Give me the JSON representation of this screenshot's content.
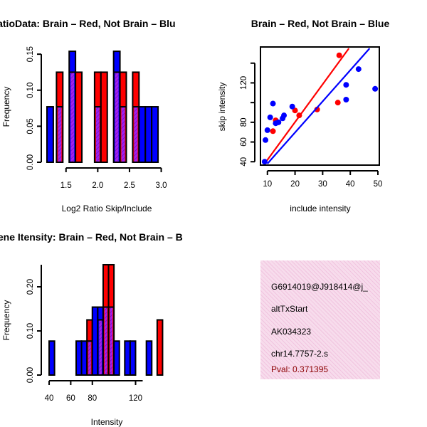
{
  "colors": {
    "red": "#ff0000",
    "blue": "#0000ff",
    "overlap": "#a020f0",
    "panel": "#f7dcec",
    "pval": "#8b0000"
  },
  "chart_data": [
    {
      "type": "bar",
      "title": "RatioData: Brain – Red, Not Brain – Blu",
      "xlabel": "Log2 Ratio Skip/Include",
      "ylabel": "Frequency",
      "xlim": [
        1.2,
        3.05
      ],
      "ylim": [
        0,
        0.16
      ],
      "x_ticks": [
        "1.5",
        "2.0",
        "2.5",
        "3.0"
      ],
      "y_ticks": [
        "0.00",
        "0.05",
        "0.10",
        "0.15"
      ],
      "bin_width": 0.1,
      "series": [
        {
          "name": "Brain",
          "color": "red",
          "bars": [
            {
              "x": 1.4,
              "v": 0.125
            },
            {
              "x": 1.6,
              "v": 0.125
            },
            {
              "x": 1.7,
              "v": 0.125
            },
            {
              "x": 2.0,
              "v": 0.125
            },
            {
              "x": 2.1,
              "v": 0.125
            },
            {
              "x": 2.3,
              "v": 0.125
            },
            {
              "x": 2.4,
              "v": 0.125
            },
            {
              "x": 2.6,
              "v": 0.125
            }
          ]
        },
        {
          "name": "Not Brain",
          "color": "blue",
          "bars": [
            {
              "x": 1.25,
              "v": 0.077
            },
            {
              "x": 1.4,
              "v": 0.077
            },
            {
              "x": 1.6,
              "v": 0.154
            },
            {
              "x": 2.0,
              "v": 0.077
            },
            {
              "x": 2.3,
              "v": 0.154
            },
            {
              "x": 2.4,
              "v": 0.077
            },
            {
              "x": 2.6,
              "v": 0.077
            },
            {
              "x": 2.7,
              "v": 0.077
            },
            {
              "x": 2.8,
              "v": 0.077
            },
            {
              "x": 2.9,
              "v": 0.077
            }
          ]
        }
      ]
    },
    {
      "type": "scatter",
      "title": "Brain – Red, Not Brain – Blue",
      "xlabel": "include intensity",
      "ylabel": "skip intensity",
      "xlim": [
        8,
        50
      ],
      "ylim": [
        38,
        155
      ],
      "x_ticks": [
        "10",
        "20",
        "30",
        "40",
        "50"
      ],
      "y_ticks": [
        "40",
        "60",
        "80",
        "120"
      ],
      "x_tick_values": [
        10,
        20,
        30,
        40,
        50
      ],
      "y_tick_values": [
        40,
        60,
        80,
        120
      ],
      "series": [
        {
          "name": "Brain",
          "color": "red",
          "points": [
            [
              13,
              82
            ],
            [
              12,
              71
            ],
            [
              20,
              92
            ],
            [
              21.5,
              87
            ],
            [
              28,
              93
            ],
            [
              35.5,
              100
            ],
            [
              36,
              148
            ]
          ],
          "fit": [
            [
              9,
              38
            ],
            [
              39.5,
              155
            ]
          ]
        },
        {
          "name": "Not Brain",
          "color": "blue",
          "points": [
            [
              9,
              40
            ],
            [
              9.3,
              62
            ],
            [
              10,
              72
            ],
            [
              11,
              85
            ],
            [
              12,
              99
            ],
            [
              13,
              79
            ],
            [
              14,
              80
            ],
            [
              15.5,
              84
            ],
            [
              16,
              87
            ],
            [
              19,
              96
            ],
            [
              38.5,
              103
            ],
            [
              38.5,
              118
            ],
            [
              43,
              134
            ],
            [
              49,
              114
            ]
          ],
          "fit": [
            [
              10,
              38
            ],
            [
              47,
              155
            ]
          ]
        }
      ]
    },
    {
      "type": "bar",
      "title": "Gene Itensity: Brain – Red, Not Brain – B",
      "xlabel": "Intensity",
      "ylabel": "Frequency",
      "xlim": [
        38,
        148
      ],
      "ylim": [
        0,
        0.25
      ],
      "x_ticks": [
        "40",
        "60",
        "80",
        "120"
      ],
      "x_tick_values": [
        40,
        60,
        80,
        120
      ],
      "y_ticks": [
        "0.00",
        "0.10",
        "0.20"
      ],
      "y_tick_values": [
        0,
        0.1,
        0.2
      ],
      "bin_width": 5,
      "series": [
        {
          "name": "Brain",
          "color": "red",
          "bars": [
            {
              "x": 77.5,
              "v": 0.125
            },
            {
              "x": 87.5,
              "v": 0.125
            },
            {
              "x": 92.5,
              "v": 0.25
            },
            {
              "x": 97.5,
              "v": 0.25
            },
            {
              "x": 142.5,
              "v": 0.125
            }
          ]
        },
        {
          "name": "Not Brain",
          "color": "blue",
          "bars": [
            {
              "x": 42.5,
              "v": 0.077
            },
            {
              "x": 67.5,
              "v": 0.077
            },
            {
              "x": 72.5,
              "v": 0.077
            },
            {
              "x": 77.5,
              "v": 0.077
            },
            {
              "x": 82.5,
              "v": 0.154
            },
            {
              "x": 87.5,
              "v": 0.154
            },
            {
              "x": 92.5,
              "v": 0.154
            },
            {
              "x": 97.5,
              "v": 0.154
            },
            {
              "x": 102.5,
              "v": 0.077
            },
            {
              "x": 112.5,
              "v": 0.077
            },
            {
              "x": 117.5,
              "v": 0.077
            },
            {
              "x": 132.5,
              "v": 0.077
            }
          ]
        }
      ]
    }
  ],
  "info": {
    "id": "G6914019@J918414@j_",
    "event": "altTxStart",
    "accession": "AK034323",
    "location": "chr14.7757-2.s",
    "pval": "Pval: 0.371395"
  }
}
